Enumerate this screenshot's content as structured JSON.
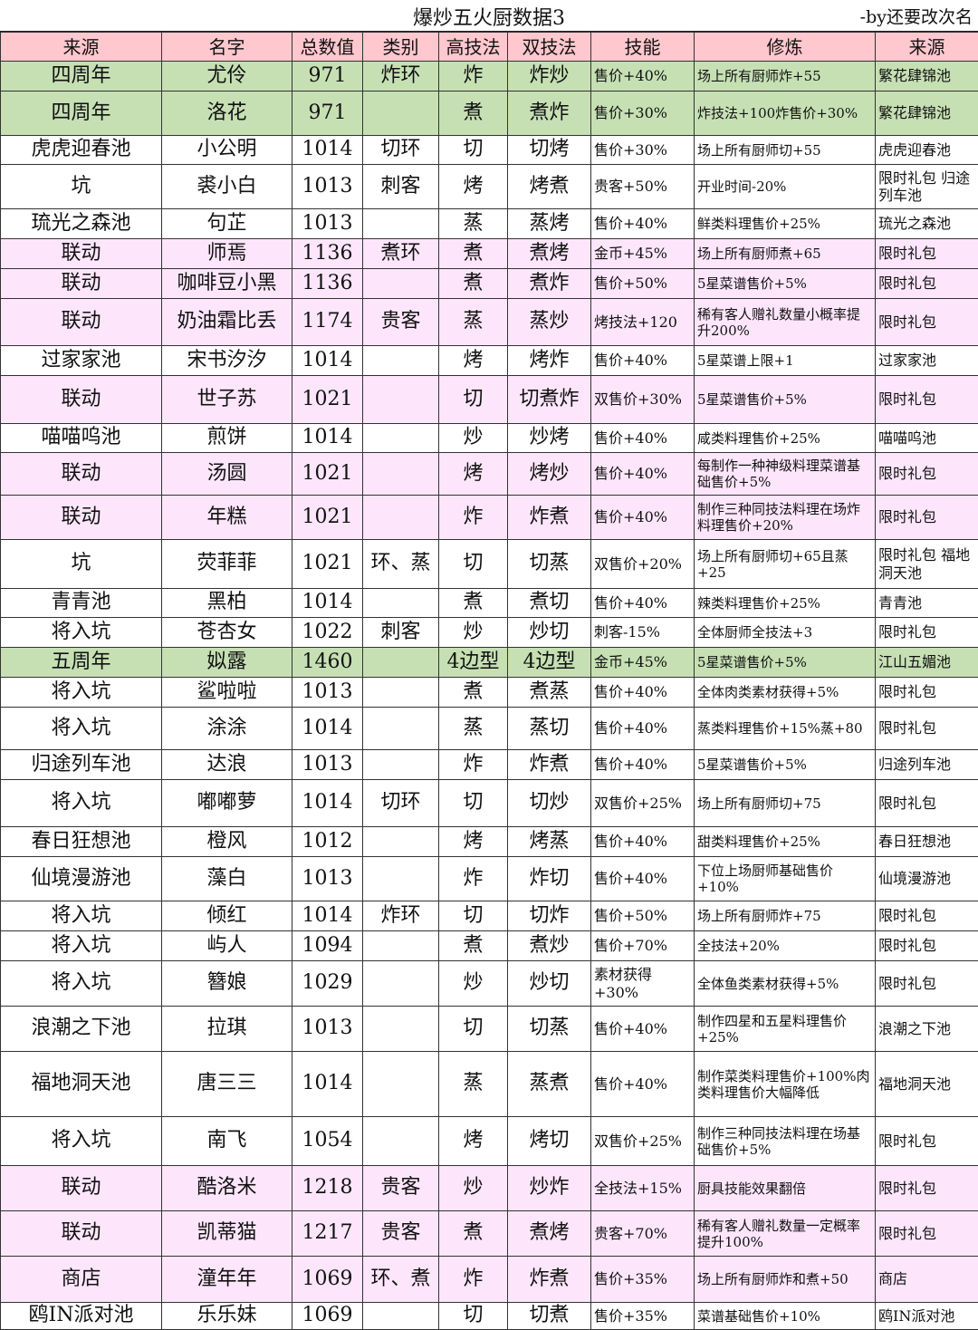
{
  "title": "爆炒五火厨数据3",
  "author": "-by还要改次名",
  "colors": {
    "header": "#ffc7ce",
    "green": "#c6e0b4",
    "pink": "#fde6fb",
    "white": "#ffffff"
  },
  "columns": [
    "来源",
    "名字",
    "总数值",
    "类别",
    "高技法",
    "双技法",
    "技能",
    "修炼",
    "来源"
  ],
  "rows": [
    {
      "color": "green",
      "cells": [
        "四周年",
        "尤伶",
        "971",
        "炸环",
        "炸",
        "炸炒",
        "售价+40%",
        "场上所有厨师炸+55",
        "繁花肆锦池"
      ]
    },
    {
      "color": "green",
      "cells": [
        "四周年",
        "洛花",
        "971",
        "",
        "煮",
        "煮炸",
        "售价+30%",
        "炸技法+100炸售价+30%",
        "繁花肆锦池"
      ]
    },
    {
      "color": "white",
      "cells": [
        "虎虎迎春池",
        "小公明",
        "1014",
        "切环",
        "切",
        "切烤",
        "售价+30%",
        "场上所有厨师切+55",
        "虎虎迎春池"
      ]
    },
    {
      "color": "white",
      "cells": [
        "坑",
        "裘小白",
        "1013",
        "刺客",
        "烤",
        "烤煮",
        "贵客+50%",
        "开业时间-20%",
        "限时礼包 归途列车池"
      ]
    },
    {
      "color": "white",
      "cells": [
        "琉光之森池",
        "句芷",
        "1013",
        "",
        "蒸",
        "蒸烤",
        "售价+40%",
        "鲜类料理售价+25%",
        "琉光之森池"
      ]
    },
    {
      "color": "pink",
      "cells": [
        "联动",
        "师焉",
        "1136",
        "煮环",
        "煮",
        "煮烤",
        "金币+45%",
        "场上所有厨师煮+65",
        "限时礼包"
      ]
    },
    {
      "color": "pink",
      "cells": [
        "联动",
        "咖啡豆小黑",
        "1136",
        "",
        "煮",
        "煮炸",
        "售价+50%",
        "5星菜谱售价+5%",
        "限时礼包"
      ]
    },
    {
      "color": "pink",
      "cells": [
        "联动",
        "奶油霜比丢",
        "1174",
        "贵客",
        "蒸",
        "蒸炒",
        "烤技法+120",
        "稀有客人赠礼数量小概率提升200%",
        "限时礼包"
      ]
    },
    {
      "color": "white",
      "cells": [
        "过家家池",
        "宋书汐汐",
        "1014",
        "",
        "烤",
        "烤炸",
        "售价+40%",
        "5星菜谱上限+1",
        "过家家池"
      ]
    },
    {
      "color": "pink",
      "cells": [
        "联动",
        "世子苏",
        "1021",
        "",
        "切",
        "切煮炸",
        "双售价+30%",
        "5星菜谱售价+5%",
        "限时礼包"
      ]
    },
    {
      "color": "white",
      "cells": [
        "喵喵呜池",
        "煎饼",
        "1014",
        "",
        "炒",
        "炒烤",
        "售价+40%",
        "咸类料理售价+25%",
        "喵喵呜池"
      ]
    },
    {
      "color": "pink",
      "cells": [
        "联动",
        "汤圆",
        "1021",
        "",
        "烤",
        "烤炒",
        "售价+40%",
        "每制作一种神级料理菜谱基础售价+5%",
        "限时礼包"
      ]
    },
    {
      "color": "pink",
      "cells": [
        "联动",
        "年糕",
        "1021",
        "",
        "炸",
        "炸煮",
        "售价+40%",
        "制作三种同技法料理在场炸料理售价+20%",
        "限时礼包"
      ]
    },
    {
      "color": "white",
      "cells": [
        "坑",
        "荧菲菲",
        "1021",
        "环、蒸",
        "切",
        "切蒸",
        "双售价+20%",
        "场上所有厨师切+65且蒸+25",
        "限时礼包 福地洞天池"
      ]
    },
    {
      "color": "white",
      "cells": [
        "青青池",
        "黑柏",
        "1014",
        "",
        "煮",
        "煮切",
        "售价+40%",
        "辣类料理售价+25%",
        "青青池"
      ]
    },
    {
      "color": "white",
      "cells": [
        "将入坑",
        "苍杏女",
        "1022",
        "刺客",
        "炒",
        "炒切",
        "刺客-15%",
        "全体厨师全技法+3",
        "限时礼包"
      ]
    },
    {
      "color": "green",
      "cells": [
        "五周年",
        "姒露",
        "1460",
        "",
        "4边型",
        "4边型",
        "金币+45%",
        "5星菜谱售价+5%",
        "江山五媚池"
      ]
    },
    {
      "color": "white",
      "cells": [
        "将入坑",
        "鲨啦啦",
        "1013",
        "",
        "煮",
        "煮蒸",
        "售价+40%",
        "全体肉类素材获得+5%",
        "限时礼包"
      ]
    },
    {
      "color": "white",
      "cells": [
        "将入坑",
        "涂涂",
        "1014",
        "",
        "蒸",
        "蒸切",
        "售价+40%",
        "蒸类料理售价+15%蒸+80",
        "限时礼包"
      ]
    },
    {
      "color": "white",
      "cells": [
        "归途列车池",
        "达浪",
        "1013",
        "",
        "炸",
        "炸煮",
        "售价+40%",
        "5星菜谱售价+5%",
        "归途列车池"
      ]
    },
    {
      "color": "white",
      "cells": [
        "将入坑",
        "嘟嘟萝",
        "1014",
        "切环",
        "切",
        "切炒",
        "双售价+25%",
        "场上所有厨师切+75",
        "限时礼包"
      ]
    },
    {
      "color": "white",
      "cells": [
        "春日狂想池",
        "橙风",
        "1012",
        "",
        "烤",
        "烤蒸",
        "售价+40%",
        "甜类料理售价+25%",
        "春日狂想池"
      ]
    },
    {
      "color": "white",
      "cells": [
        "仙境漫游池",
        "藻白",
        "1013",
        "",
        "炸",
        "炸切",
        "售价+40%",
        "下位上场厨师基础售价+10%",
        "仙境漫游池"
      ]
    },
    {
      "color": "white",
      "cells": [
        "将入坑",
        "倾红",
        "1014",
        "炸环",
        "切",
        "切炸",
        "售价+50%",
        "场上所有厨师炸+75",
        "限时礼包"
      ]
    },
    {
      "color": "white",
      "cells": [
        "将入坑",
        "屿人",
        "1094",
        "",
        "煮",
        "煮炒",
        "售价+70%",
        "全技法+20%",
        "限时礼包"
      ]
    },
    {
      "color": "white",
      "cells": [
        "将入坑",
        "簪娘",
        "1029",
        "",
        "炒",
        "炒切",
        "素材获得+30%",
        "全体鱼类素材获得+5%",
        "限时礼包"
      ]
    },
    {
      "color": "white",
      "cells": [
        "浪潮之下池",
        "拉琪",
        "1013",
        "",
        "切",
        "切蒸",
        "售价+40%",
        "制作四星和五星料理售价+25%",
        "浪潮之下池"
      ]
    },
    {
      "color": "white",
      "cells": [
        "福地洞天池",
        "唐三三",
        "1014",
        "",
        "蒸",
        "蒸煮",
        "售价+40%",
        "制作菜类料理售价+100%肉类料理售价大幅降低",
        "福地洞天池"
      ]
    },
    {
      "color": "white",
      "cells": [
        "将入坑",
        "南飞",
        "1054",
        "",
        "烤",
        "烤切",
        "双售价+25%",
        "制作三种同技法料理在场基础售价+5%",
        "限时礼包"
      ]
    },
    {
      "color": "pink",
      "cells": [
        "联动",
        "酷洛米",
        "1218",
        "贵客",
        "炒",
        "炒炸",
        "全技法+15%",
        "厨具技能效果翻倍",
        "限时礼包"
      ]
    },
    {
      "color": "pink",
      "cells": [
        "联动",
        "凯蒂猫",
        "1217",
        "贵客",
        "煮",
        "煮烤",
        "贵客+70%",
        "稀有客人赠礼数量一定概率提升100%",
        "限时礼包"
      ]
    },
    {
      "color": "pink",
      "cells": [
        "商店",
        "潼年年",
        "1069",
        "环、煮",
        "炸",
        "炸煮",
        "售价+35%",
        "场上所有厨师炸和煮+50",
        "商店"
      ]
    },
    {
      "color": "white",
      "cells": [
        "鸥IN派对池",
        "乐乐妹",
        "1069",
        "",
        "切",
        "切煮",
        "售价+35%",
        "菜谱基础售价+10%",
        "鸥IN派对池"
      ]
    }
  ]
}
